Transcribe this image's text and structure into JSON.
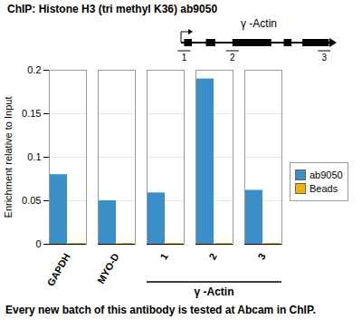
{
  "chart_data": {
    "type": "bar",
    "title": "ChIP: Histone H3 (tri methyl K36) ab9050",
    "ylabel": "Enrichment relative to Input",
    "categories": [
      "GAPDH",
      "MYO-D",
      "1",
      "2",
      "3"
    ],
    "series": [
      {
        "name": "ab9050",
        "color": "#3a8fc9",
        "values": [
          0.08,
          0.05,
          0.059,
          0.19,
          0.062
        ]
      },
      {
        "name": "Beads",
        "color": "#f0b400",
        "values": [
          0.001,
          0.001,
          0.001,
          0.001,
          0.001
        ]
      }
    ],
    "ylim": [
      0,
      0.2
    ],
    "yticks": [
      0,
      0.05,
      0.1,
      0.15,
      0.2
    ],
    "grid": true,
    "legend": "right",
    "group_label": {
      "label": "γ -Actin",
      "categories": [
        "1",
        "2",
        "3"
      ]
    },
    "gene_diagram": {
      "label": "γ -Actin",
      "regions": [
        "1",
        "2",
        "3"
      ]
    },
    "caption": "Every new batch of this antibody is tested at Abcam in ChIP."
  }
}
